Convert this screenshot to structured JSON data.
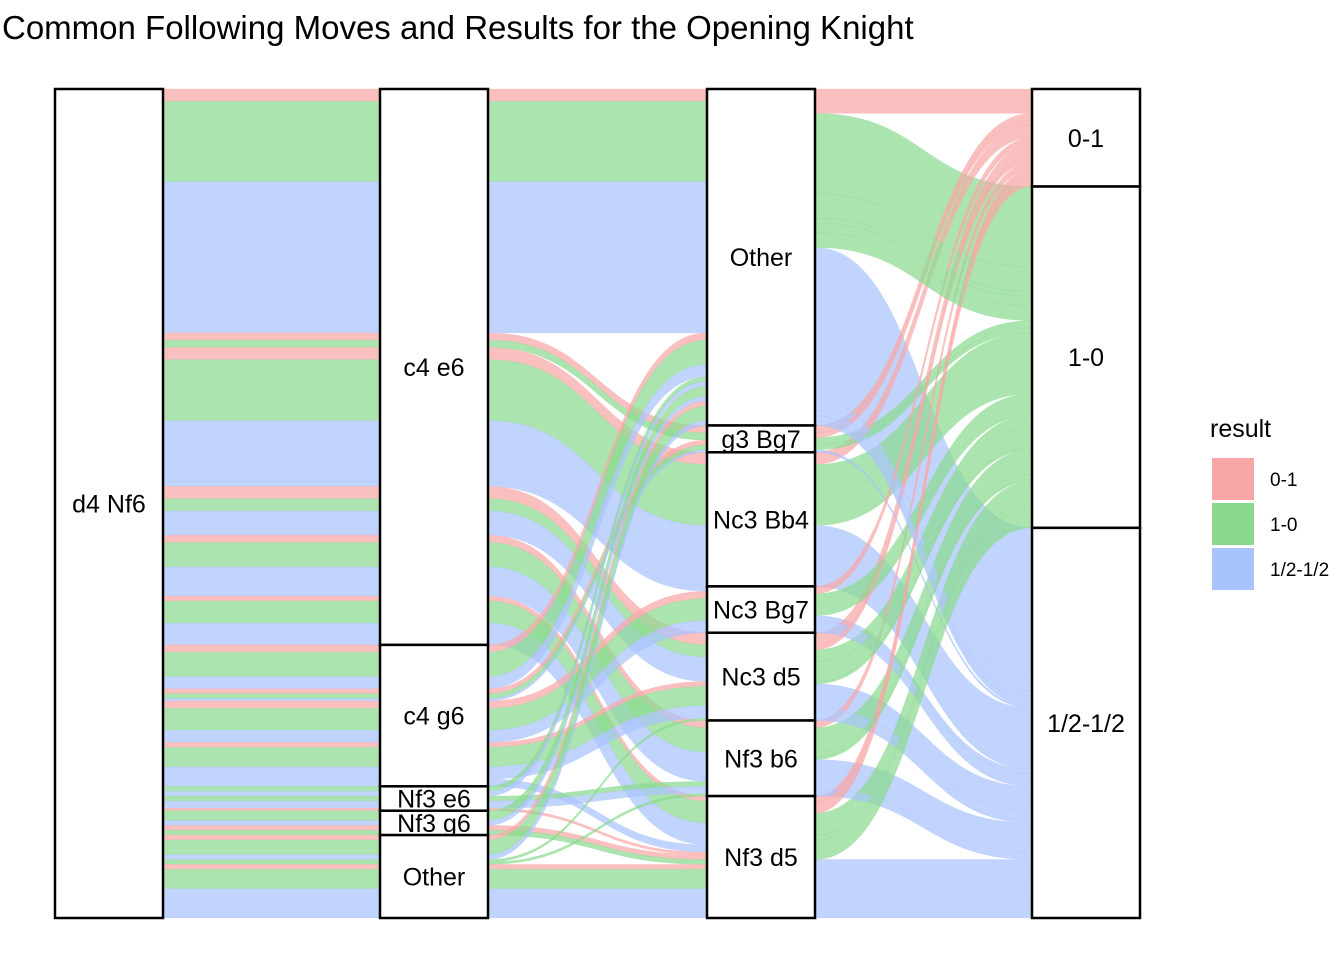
{
  "chart_data": {
    "type": "alluvial",
    "title": "Common Following Moves and Results for the Opening Knight",
    "axes": [
      {
        "name": "opening",
        "strata": [
          "d4 Nf6"
        ]
      },
      {
        "name": "move2",
        "strata": [
          "c4 e6",
          "c4 g6",
          "Nf3 e6",
          "Nf3 g6",
          "Other"
        ]
      },
      {
        "name": "move3",
        "strata": [
          "Other",
          "g3 Bg7",
          "Nc3 Bb4",
          "Nc3 Bg7",
          "Nc3 d5",
          "Nf3 b6",
          "Nf3 d5"
        ]
      },
      {
        "name": "result",
        "strata": [
          "0-1",
          "1-0",
          "1/2-1/2"
        ]
      }
    ],
    "legend": {
      "title": "result",
      "position": "right",
      "items": [
        {
          "label": "0-1",
          "color": "#F8A7A7"
        },
        {
          "label": "1-0",
          "color": "#8AD98F"
        },
        {
          "label": "1/2-1/2",
          "color": "#A9C3FC"
        }
      ]
    },
    "flows": [
      {
        "move2": "c4 e6",
        "move3": "Other",
        "result": "0-1",
        "value": 5
      },
      {
        "move2": "c4 e6",
        "move3": "Other",
        "result": "1-0",
        "value": 33
      },
      {
        "move2": "c4 e6",
        "move3": "Other",
        "result": "1/2-1/2",
        "value": 62
      },
      {
        "move2": "c4 e6",
        "move3": "g3 Bg7",
        "result": "0-1",
        "value": 3
      },
      {
        "move2": "c4 e6",
        "move3": "g3 Bg7",
        "result": "1-0",
        "value": 3
      },
      {
        "move2": "c4 e6",
        "move3": "Nc3 Bb4",
        "result": "0-1",
        "value": 5
      },
      {
        "move2": "c4 e6",
        "move3": "Nc3 Bb4",
        "result": "1-0",
        "value": 25
      },
      {
        "move2": "c4 e6",
        "move3": "Nc3 Bb4",
        "result": "1/2-1/2",
        "value": 25
      },
      {
        "move2": "c4 e6",
        "move3": "Nc3 Bg7",
        "result": "1/2-1/2",
        "value": 2
      },
      {
        "move2": "c4 e6",
        "move3": "Nc3 d5",
        "result": "0-1",
        "value": 5
      },
      {
        "move2": "c4 e6",
        "move3": "Nc3 d5",
        "result": "1-0",
        "value": 5
      },
      {
        "move2": "c4 e6",
        "move3": "Nc3 d5",
        "result": "1/2-1/2",
        "value": 10
      },
      {
        "move2": "c4 e6",
        "move3": "Nf3 b6",
        "result": "0-1",
        "value": 3
      },
      {
        "move2": "c4 e6",
        "move3": "Nf3 b6",
        "result": "1-0",
        "value": 10
      },
      {
        "move2": "c4 e6",
        "move3": "Nf3 b6",
        "result": "1/2-1/2",
        "value": 12
      },
      {
        "move2": "c4 e6",
        "move3": "Nf3 d5",
        "result": "0-1",
        "value": 2
      },
      {
        "move2": "c4 e6",
        "move3": "Nf3 d5",
        "result": "1-0",
        "value": 9
      },
      {
        "move2": "c4 e6",
        "move3": "Nf3 d5",
        "result": "1/2-1/2",
        "value": 9
      },
      {
        "move2": "c4 g6",
        "move3": "Other",
        "result": "0-1",
        "value": 3
      },
      {
        "move2": "c4 g6",
        "move3": "Other",
        "result": "1-0",
        "value": 10
      },
      {
        "move2": "c4 g6",
        "move3": "Other",
        "result": "1/2-1/2",
        "value": 5
      },
      {
        "move2": "c4 g6",
        "move3": "g3 Bg7",
        "result": "0-1",
        "value": 2
      },
      {
        "move2": "c4 g6",
        "move3": "g3 Bg7",
        "result": "1-0",
        "value": 2
      },
      {
        "move2": "c4 g6",
        "move3": "g3 Bg7",
        "result": "1/2-1/2",
        "value": 1
      },
      {
        "move2": "c4 g6",
        "move3": "Nc3 Bg7",
        "result": "0-1",
        "value": 3
      },
      {
        "move2": "c4 g6",
        "move3": "Nc3 Bg7",
        "result": "1-0",
        "value": 9
      },
      {
        "move2": "c4 g6",
        "move3": "Nc3 Bg7",
        "result": "1/2-1/2",
        "value": 5
      },
      {
        "move2": "c4 g6",
        "move3": "Nc3 d5",
        "result": "0-1",
        "value": 2
      },
      {
        "move2": "c4 g6",
        "move3": "Nc3 d5",
        "result": "1-0",
        "value": 8
      },
      {
        "move2": "c4 g6",
        "move3": "Nc3 d5",
        "result": "1/2-1/2",
        "value": 5
      },
      {
        "move2": "c4 g6",
        "move3": "Nf3 d5",
        "result": "1/2-1/2",
        "value": 3
      },
      {
        "move2": "Nf3 e6",
        "move3": "Other",
        "result": "1-0",
        "value": 2
      },
      {
        "move2": "Nf3 e6",
        "move3": "Other",
        "result": "1/2-1/2",
        "value": 2
      },
      {
        "move2": "Nf3 e6",
        "move3": "Nf3 b6",
        "result": "1-0",
        "value": 2
      },
      {
        "move2": "Nf3 e6",
        "move3": "Nf3 b6",
        "result": "1/2-1/2",
        "value": 3
      },
      {
        "move2": "Nf3 e6",
        "move3": "Nf3 d5",
        "result": "0-1",
        "value": 1
      },
      {
        "move2": "Nf3 g6",
        "move3": "Other",
        "result": "1-0",
        "value": 4
      },
      {
        "move2": "Nf3 g6",
        "move3": "Other",
        "result": "1/2-1/2",
        "value": 2
      },
      {
        "move2": "Nf3 g6",
        "move3": "Nf3 d5",
        "result": "0-1",
        "value": 2
      },
      {
        "move2": "Nf3 g6",
        "move3": "Nf3 d5",
        "result": "1-0",
        "value": 2
      },
      {
        "move2": "Other",
        "move3": "Other",
        "result": "0-1",
        "value": 2
      },
      {
        "move2": "Other",
        "move3": "Other",
        "result": "1-0",
        "value": 6
      },
      {
        "move2": "Other",
        "move3": "Other",
        "result": "1/2-1/2",
        "value": 2
      },
      {
        "move2": "Other",
        "move3": "Nc3 d5",
        "result": "1-0",
        "value": 1
      },
      {
        "move2": "Other",
        "move3": "Nf3 b6",
        "result": "1-0",
        "value": 1
      },
      {
        "move2": "Other",
        "move3": "Nf3 d5",
        "result": "0-1",
        "value": 2
      },
      {
        "move2": "Other",
        "move3": "Nf3 d5",
        "result": "1-0",
        "value": 8
      },
      {
        "move2": "Other",
        "move3": "Nf3 d5",
        "result": "1/2-1/2",
        "value": 12
      }
    ]
  }
}
